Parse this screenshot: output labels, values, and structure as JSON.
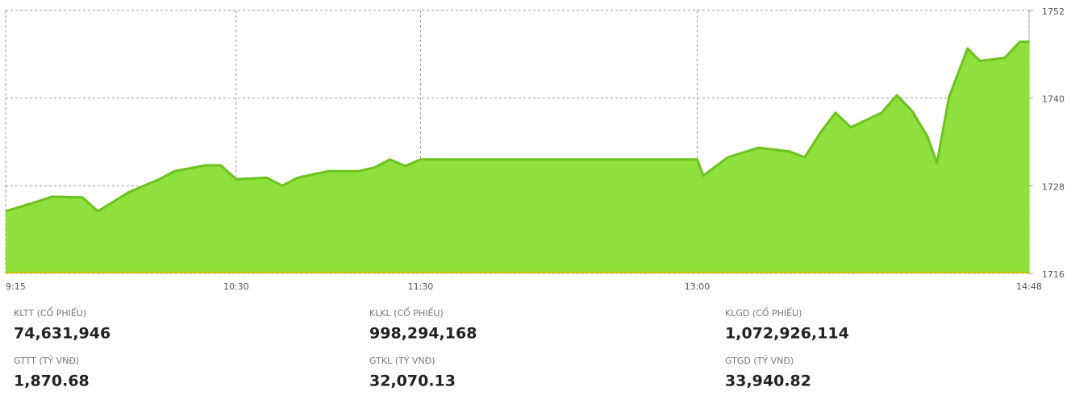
{
  "chart_data": {
    "type": "area",
    "x": [
      "9:15",
      "9:25",
      "9:30",
      "9:40",
      "9:45",
      "9:55",
      "10:05",
      "10:10",
      "10:20",
      "10:25",
      "10:30",
      "10:40",
      "10:45",
      "10:50",
      "11:00",
      "11:10",
      "11:15",
      "11:20",
      "11:25",
      "11:30",
      "13:00",
      "13:02",
      "13:10",
      "13:20",
      "13:30",
      "13:35",
      "13:40",
      "13:45",
      "13:50",
      "14:00",
      "14:05",
      "14:10",
      "14:15",
      "14:18",
      "14:22",
      "14:28",
      "14:32",
      "14:40",
      "14:45",
      "14:48"
    ],
    "values": [
      1724.5,
      1725.8,
      1726.5,
      1726.4,
      1724.5,
      1727.1,
      1728.9,
      1730,
      1730.8,
      1730.8,
      1728.9,
      1729.1,
      1728,
      1729.1,
      1730,
      1730,
      1730.5,
      1731.6,
      1730.7,
      1731.6,
      1731.6,
      1729.4,
      1731.9,
      1733.2,
      1732.7,
      1731.9,
      1735.2,
      1738,
      1736,
      1738,
      1740.4,
      1738.2,
      1734.7,
      1731.1,
      1740.2,
      1746.8,
      1745.1,
      1745.5,
      1747.7,
      1747.7
    ],
    "color": "#8ee03c",
    "line_color": "#6cc21e",
    "ylim": [
      1716,
      1752
    ],
    "yticks": [
      1716,
      1728,
      1740,
      1752
    ],
    "xticks": [
      "9:15",
      "10:30",
      "11:30",
      "13:00",
      "14:48"
    ],
    "grid": true
  },
  "stats": [
    {
      "label": "KLTT (CỔ PHIẾU)",
      "value": "74,631,946"
    },
    {
      "label": "GTTT (TỶ VNĐ)",
      "value": "1,870.68"
    },
    {
      "label": "KLKL (CỔ PHIẾU)",
      "value": "998,294,168"
    },
    {
      "label": "GTKL (TỶ VNĐ)",
      "value": "32,070.13"
    },
    {
      "label": "KLGD (CỔ PHIẾU)",
      "value": "1,072,926,114"
    },
    {
      "label": "GTGD (TỶ VNĐ)",
      "value": "33,940.82"
    }
  ]
}
